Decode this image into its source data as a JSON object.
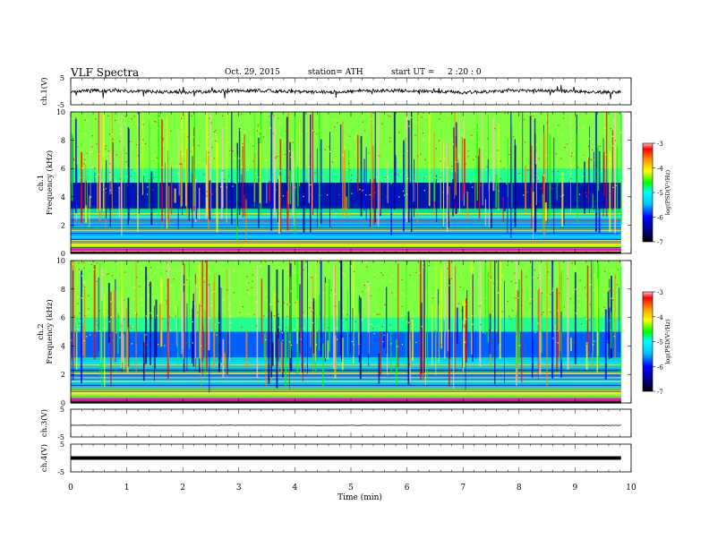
{
  "header": {
    "title": "VLF  Spectra",
    "date": "Oct. 29, 2015",
    "station": "station= ATH",
    "start_label": "start  UT  =",
    "start_time": "2  :20 : 0"
  },
  "x_axis": {
    "label": "Time  (min)",
    "ticks": [
      "0",
      "1",
      "2",
      "3",
      "4",
      "5",
      "6",
      "7",
      "8",
      "9",
      "10"
    ]
  },
  "colors": {
    "spectrogram_scale": [
      "#000000",
      "#00008b",
      "#0000ff",
      "#00bfff",
      "#00ffff",
      "#00ff00",
      "#ffff00",
      "#ff8c00",
      "#ff0000",
      "#ffc0c0"
    ]
  },
  "chart_data": [
    {
      "type": "line",
      "ylabel": "ch.1(V)",
      "ylim": [
        -5,
        5
      ],
      "yticks": [
        "5",
        "-5"
      ],
      "xlim": [
        0,
        10
      ],
      "x_end": 9.82,
      "baseline": 0.0,
      "noise": 0.6
    },
    {
      "type": "heatmap",
      "ylabel": "ch.1\nFrequency  (kHz)",
      "ylabel_channel": "ch.1",
      "ylabel_axis": "Frequency  (kHz)",
      "ylim": [
        0,
        10
      ],
      "yticks": [
        "0",
        "2",
        "4",
        "6",
        "8",
        "10"
      ],
      "xlim": [
        0,
        10
      ],
      "x_end": 9.82,
      "colorbar": {
        "label": "log(PSD(V²/Hz)",
        "range": [
          -7,
          -3
        ],
        "ticks": [
          "-3",
          "-4",
          "-5",
          "-6",
          "-7"
        ]
      }
    },
    {
      "type": "heatmap",
      "ylabel": "ch.2\nFrequency  (kHz)",
      "ylabel_channel": "ch.2",
      "ylabel_axis": "Frequency  (kHz)",
      "ylim": [
        0,
        10
      ],
      "yticks": [
        "0",
        "2",
        "4",
        "6",
        "8",
        "10"
      ],
      "xlim": [
        0,
        10
      ],
      "x_end": 9.82,
      "colorbar": {
        "label": "log(PSD(V²/Hz)",
        "range": [
          -7,
          -3
        ],
        "ticks": [
          "-3",
          "-4",
          "-5",
          "-6",
          "-7"
        ]
      }
    },
    {
      "type": "line",
      "ylabel": "ch.3(V)",
      "ylim": [
        -5,
        5
      ],
      "yticks": [
        "5",
        "-5"
      ],
      "xlim": [
        0,
        10
      ],
      "x_end": 9.82,
      "baseline": -0.8,
      "noise": 0.05
    },
    {
      "type": "line",
      "ylabel": "ch.4(V)",
      "ylim": [
        -5,
        5
      ],
      "yticks": [
        "5",
        "-5"
      ],
      "xlim": [
        0,
        10
      ],
      "x_end": 9.82,
      "baseline": 0.0,
      "noise": 0.0
    }
  ]
}
